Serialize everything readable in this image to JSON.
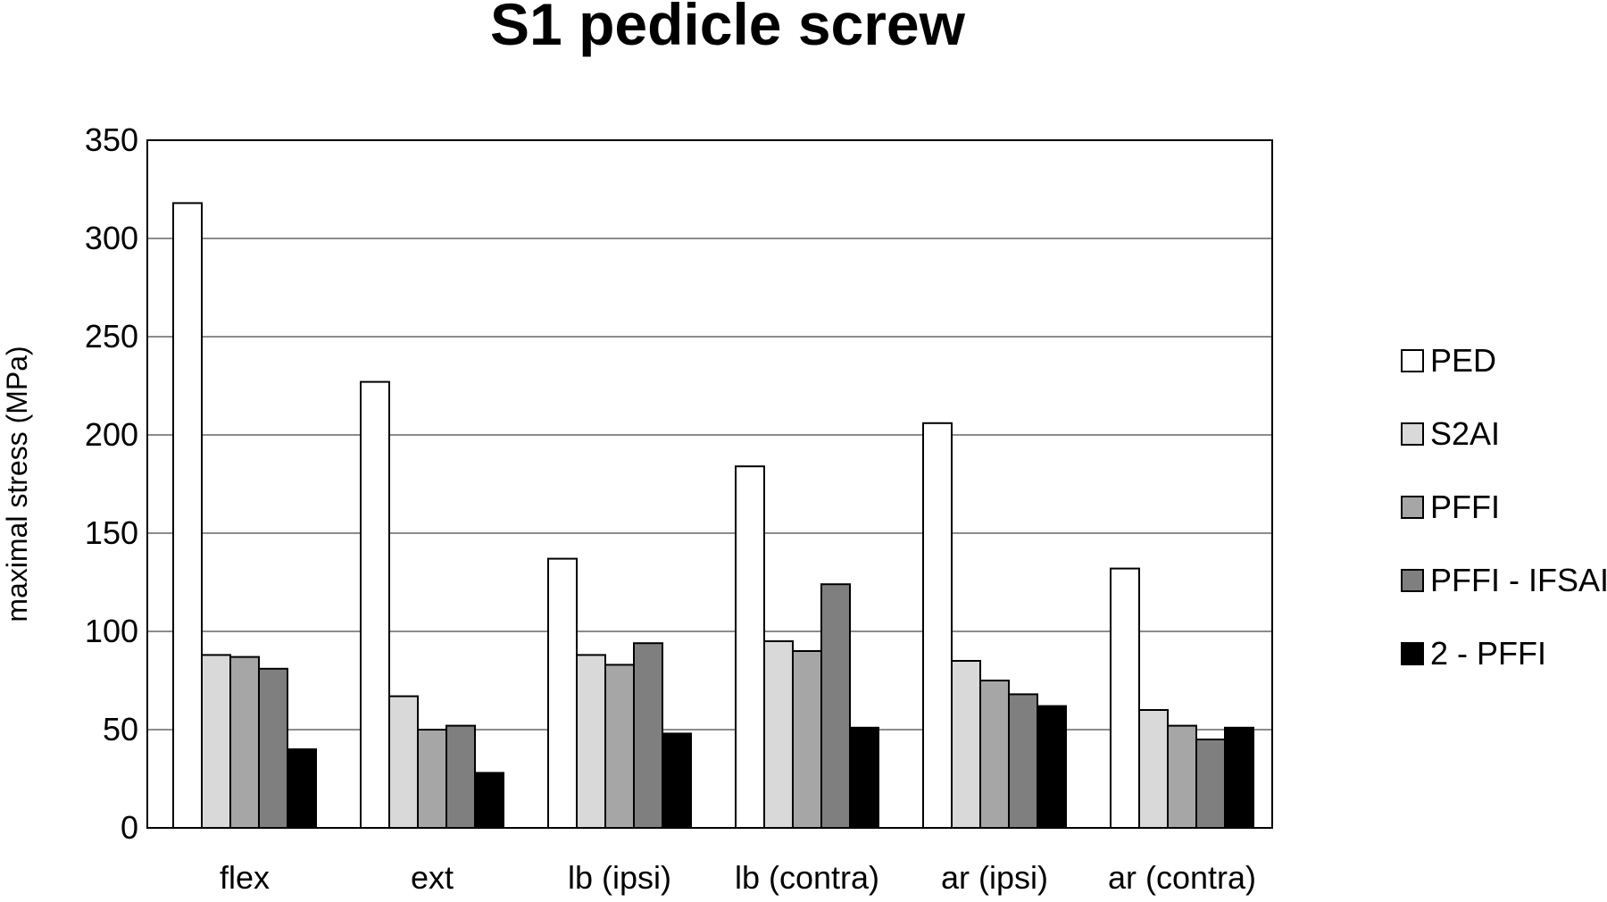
{
  "chart_data": {
    "type": "bar",
    "title": "S1 pedicle screw",
    "xlabel": "",
    "ylabel": "maximal stress (MPa)",
    "ylim": [
      0,
      350
    ],
    "yticks": [
      "0",
      "50",
      "100",
      "150",
      "200",
      "250",
      "300",
      "350"
    ],
    "categories": [
      "flex",
      "ext",
      "lb (ipsi)",
      "lb (contra)",
      "ar (ipsi)",
      "ar (contra)"
    ],
    "grid": true,
    "legend_position": "right",
    "series": [
      {
        "name": "PED",
        "color": "#ffffff",
        "values": [
          318,
          227,
          137,
          184,
          206,
          132
        ]
      },
      {
        "name": "S2AI",
        "color": "#d9d9d9",
        "values": [
          88,
          67,
          88,
          95,
          85,
          60
        ]
      },
      {
        "name": "PFFI",
        "color": "#a6a6a6",
        "values": [
          87,
          50,
          83,
          90,
          75,
          52
        ]
      },
      {
        "name": "PFFI - IFSAI",
        "color": "#7f7f7f",
        "values": [
          81,
          52,
          94,
          124,
          68,
          45
        ]
      },
      {
        "name": "2 - PFFI",
        "color": "#000000",
        "values": [
          40,
          28,
          48,
          51,
          62,
          51
        ]
      }
    ]
  }
}
